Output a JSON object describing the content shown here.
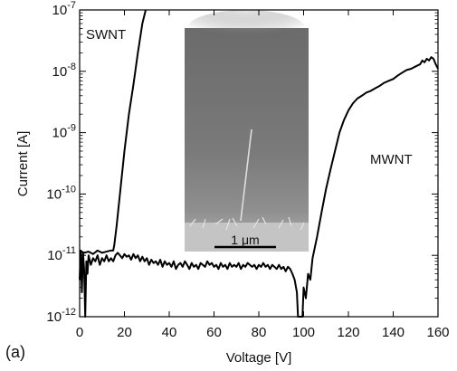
{
  "chart_data": {
    "type": "line",
    "panel_label": "(a)",
    "xlabel": "Voltage [V]",
    "ylabel": "Current [A]",
    "xlim": [
      0,
      160
    ],
    "ylim": [
      1e-12,
      1e-07
    ],
    "y_scale": "log",
    "grid": false,
    "x_ticks": [
      0,
      20,
      40,
      60,
      80,
      100,
      120,
      140,
      160
    ],
    "y_ticks": [
      {
        "value": 1e-12,
        "base": "10",
        "exp": "-12"
      },
      {
        "value": 1e-11,
        "base": "10",
        "exp": "-11"
      },
      {
        "value": 1e-10,
        "base": "10",
        "exp": "-10"
      },
      {
        "value": 1e-09,
        "base": "10",
        "exp": "-9"
      },
      {
        "value": 1e-08,
        "base": "10",
        "exp": "-8"
      },
      {
        "value": 1e-07,
        "base": "10",
        "exp": "-7"
      }
    ],
    "series": [
      {
        "name": "SWNT",
        "color": "#000000",
        "points": [
          [
            0,
            1.2e-11
          ],
          [
            2,
            1.1e-11
          ],
          [
            4,
            1.15e-11
          ],
          [
            6,
            1.05e-11
          ],
          [
            8,
            1.2e-11
          ],
          [
            10,
            1.1e-11
          ],
          [
            12,
            1.15e-11
          ],
          [
            14,
            1.2e-11
          ],
          [
            15,
            1.2e-11
          ],
          [
            15.5,
            1.5e-11
          ],
          [
            16.5,
            3e-11
          ],
          [
            18,
            1e-10
          ],
          [
            20,
            5e-10
          ],
          [
            22,
            2e-09
          ],
          [
            24,
            6e-09
          ],
          [
            26,
            2e-08
          ],
          [
            28,
            6e-08
          ],
          [
            29.5,
            1e-07
          ]
        ]
      },
      {
        "name": "MWNT",
        "color": "#000000",
        "points": [
          [
            0,
            4e-12
          ],
          [
            0.5,
            1.2e-11
          ],
          [
            1,
            2.5e-12
          ],
          [
            1.5,
            1.1e-11
          ],
          [
            2,
            6e-12
          ],
          [
            2.5,
            1e-12
          ],
          [
            3,
            8e-12
          ],
          [
            3.5,
            5e-12
          ],
          [
            4,
            1e-11
          ],
          [
            5,
            7e-12
          ],
          [
            6,
            9e-12
          ],
          [
            7,
            8e-12
          ],
          [
            8,
            1e-11
          ],
          [
            9,
            7e-12
          ],
          [
            10,
            9e-12
          ],
          [
            11,
            8e-12
          ],
          [
            12,
            1e-11
          ],
          [
            13,
            8e-12
          ],
          [
            14,
            9e-12
          ],
          [
            15,
            8e-12
          ],
          [
            16,
            1e-11
          ],
          [
            17,
            1.1e-11
          ],
          [
            18,
            1e-11
          ],
          [
            19,
            9e-12
          ],
          [
            20,
            1.05e-11
          ],
          [
            21,
            9.5e-12
          ],
          [
            22,
            1e-11
          ],
          [
            23,
            8.5e-12
          ],
          [
            24,
            1.05e-11
          ],
          [
            25,
            9e-12
          ],
          [
            26,
            1e-11
          ],
          [
            27,
            8e-12
          ],
          [
            28,
            9.5e-12
          ],
          [
            29,
            8e-12
          ],
          [
            30,
            9e-12
          ],
          [
            31,
            7e-12
          ],
          [
            32,
            8.5e-12
          ],
          [
            33,
            7.5e-12
          ],
          [
            34,
            8e-12
          ],
          [
            35,
            7e-12
          ],
          [
            36,
            8.5e-12
          ],
          [
            37,
            6.5e-12
          ],
          [
            38,
            8e-12
          ],
          [
            39,
            7e-12
          ],
          [
            40,
            7.5e-12
          ],
          [
            41,
            6.5e-12
          ],
          [
            42,
            8e-12
          ],
          [
            43,
            6e-12
          ],
          [
            44,
            7e-12
          ],
          [
            45,
            7.5e-12
          ],
          [
            46,
            6.5e-12
          ],
          [
            47,
            8e-12
          ],
          [
            48,
            7e-12
          ],
          [
            49,
            6e-12
          ],
          [
            50,
            7.5e-12
          ],
          [
            51,
            6.5e-12
          ],
          [
            52,
            7e-12
          ],
          [
            53,
            6e-12
          ],
          [
            54,
            7.5e-12
          ],
          [
            55,
            7e-12
          ],
          [
            56,
            6.5e-12
          ],
          [
            57,
            8e-12
          ],
          [
            58,
            7e-12
          ],
          [
            59,
            7.5e-12
          ],
          [
            60,
            6.5e-12
          ],
          [
            61,
            7e-12
          ],
          [
            62,
            6e-12
          ],
          [
            63,
            7.5e-12
          ],
          [
            64,
            6.5e-12
          ],
          [
            65,
            7e-12
          ],
          [
            66,
            6e-12
          ],
          [
            67,
            7.5e-12
          ],
          [
            68,
            6.5e-12
          ],
          [
            69,
            7e-12
          ],
          [
            70,
            6.5e-12
          ],
          [
            71,
            7.5e-12
          ],
          [
            72,
            6e-12
          ],
          [
            73,
            7e-12
          ],
          [
            74,
            6.5e-12
          ],
          [
            75,
            7.5e-12
          ],
          [
            76,
            7e-12
          ],
          [
            77,
            6.5e-12
          ],
          [
            78,
            7e-12
          ],
          [
            79,
            6e-12
          ],
          [
            80,
            7e-12
          ],
          [
            81,
            6.5e-12
          ],
          [
            82,
            7.5e-12
          ],
          [
            83,
            6.5e-12
          ],
          [
            84,
            7e-12
          ],
          [
            85,
            6e-12
          ],
          [
            86,
            7e-12
          ],
          [
            87,
            6.5e-12
          ],
          [
            88,
            6e-12
          ],
          [
            89,
            7e-12
          ],
          [
            90,
            6e-12
          ],
          [
            91,
            6.5e-12
          ],
          [
            92,
            5.5e-12
          ],
          [
            93,
            6.5e-12
          ],
          [
            94,
            6e-12
          ],
          [
            95,
            5e-12
          ],
          [
            96,
            4e-12
          ],
          [
            97,
            2.5e-12
          ],
          [
            97.5,
            1e-12
          ],
          [
            99.5,
            1e-12
          ],
          [
            100,
            3e-12
          ],
          [
            101,
            2e-12
          ],
          [
            102,
            5e-12
          ],
          [
            103,
            4e-12
          ],
          [
            104,
            9e-12
          ],
          [
            106,
            2e-11
          ],
          [
            108,
            5e-11
          ],
          [
            110,
            1.2e-10
          ],
          [
            112,
            2.5e-10
          ],
          [
            114,
            5e-10
          ],
          [
            116,
            1e-09
          ],
          [
            118,
            1.6e-09
          ],
          [
            120,
            2.3e-09
          ],
          [
            122,
            3e-09
          ],
          [
            124,
            3.6e-09
          ],
          [
            126,
            4e-09
          ],
          [
            128,
            4.5e-09
          ],
          [
            130,
            4.8e-09
          ],
          [
            132,
            5.3e-09
          ],
          [
            134,
            5.8e-09
          ],
          [
            136,
            6.5e-09
          ],
          [
            138,
            7e-09
          ],
          [
            140,
            7.5e-09
          ],
          [
            142,
            8.5e-09
          ],
          [
            144,
            9.5e-09
          ],
          [
            146,
            1.05e-08
          ],
          [
            148,
            1.1e-08
          ],
          [
            150,
            1.2e-08
          ],
          [
            152,
            1.3e-08
          ],
          [
            153,
            1.5e-08
          ],
          [
            154,
            1.4e-08
          ],
          [
            155,
            1.6e-08
          ],
          [
            156,
            1.5e-08
          ],
          [
            157,
            1.7e-08
          ],
          [
            158,
            1.6e-08
          ],
          [
            159,
            1.3e-08
          ],
          [
            160,
            1.1e-08
          ]
        ]
      }
    ],
    "inset": {
      "kind": "micrograph",
      "scale_bar_label": "1 μm"
    }
  }
}
